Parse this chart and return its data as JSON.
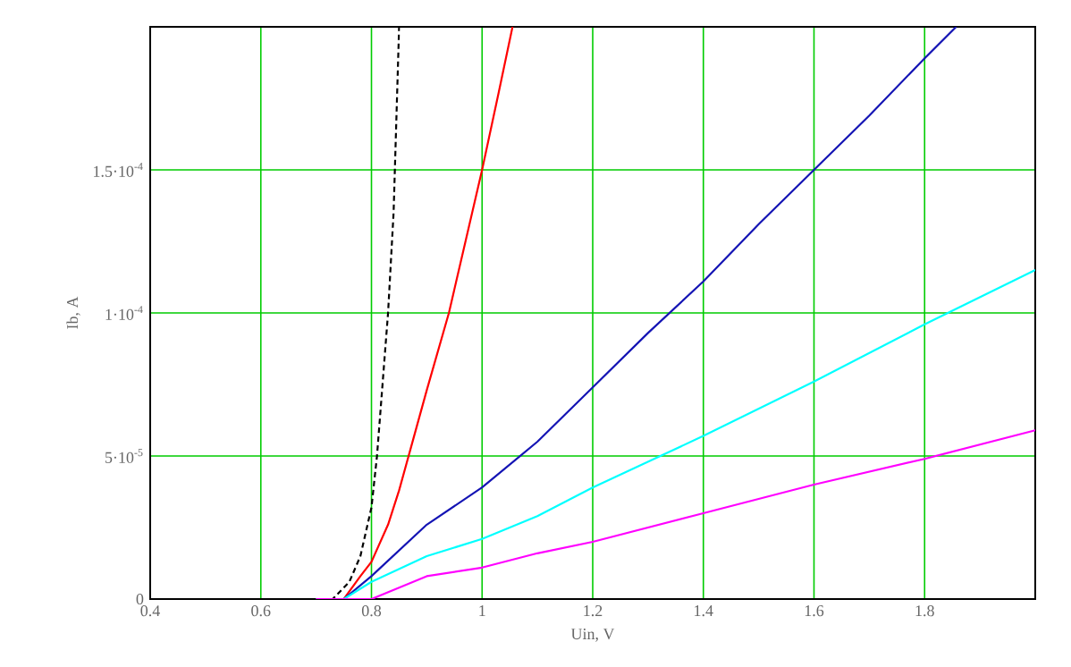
{
  "chart_data": {
    "type": "line",
    "xlabel": "Uin, V",
    "ylabel": "Ib, A",
    "xlim": [
      0.4,
      2.0
    ],
    "ylim": [
      0,
      0.0002
    ],
    "xticks": [
      0.4,
      0.6,
      0.8,
      1,
      1.2,
      1.4,
      1.6,
      1.8
    ],
    "yticks": [
      0,
      {
        "value": 5e-05,
        "label": "5·10$^{-5}$"
      },
      {
        "value": 0.0001,
        "label": "1·10$^{-4}$"
      },
      {
        "value": 0.00015,
        "label": "1.5·10$^{-4}$"
      }
    ],
    "grid": true,
    "series": [
      {
        "color": "#000000",
        "line_style": "dashed",
        "x": [
          0.5,
          0.6,
          0.7,
          0.73,
          0.76,
          0.78,
          0.8,
          0.81,
          0.82,
          0.83,
          0.84,
          0.85
        ],
        "values": [
          0,
          0,
          0,
          0,
          6e-06,
          1.5e-05,
          3.2e-05,
          5e-05,
          7.5e-05,
          0.0001,
          0.000135,
          0.0002
        ]
      },
      {
        "color": "#ff0000",
        "line_style": "solid",
        "x": [
          0.7,
          0.75,
          0.78,
          0.8,
          0.83,
          0.85,
          0.87,
          0.9,
          0.94,
          0.97,
          1.0,
          1.03,
          1.055
        ],
        "values": [
          0,
          0,
          8e-06,
          1.3e-05,
          2.6e-05,
          3.8e-05,
          5.2e-05,
          7.3e-05,
          0.0001,
          0.000125,
          0.00015,
          0.000177,
          0.0002
        ]
      },
      {
        "color": "#1414b4",
        "line_style": "solid",
        "x": [
          0.7,
          0.75,
          0.8,
          0.9,
          1.0,
          1.1,
          1.2,
          1.3,
          1.4,
          1.5,
          1.6,
          1.7,
          1.8,
          1.857
        ],
        "values": [
          0,
          0,
          8e-06,
          2.6e-05,
          3.9e-05,
          5.5e-05,
          7.4e-05,
          9.3e-05,
          0.000111,
          0.000131,
          0.00015,
          0.000169,
          0.000189,
          0.0002
        ]
      },
      {
        "color": "#00ffff",
        "line_style": "solid",
        "x": [
          0.7,
          0.75,
          0.8,
          0.9,
          1.0,
          1.1,
          1.2,
          1.4,
          1.6,
          1.8,
          2.0
        ],
        "values": [
          0,
          0,
          6e-06,
          1.5e-05,
          2.1e-05,
          2.9e-05,
          3.9e-05,
          5.7e-05,
          7.6e-05,
          9.6e-05,
          0.000115
        ]
      },
      {
        "color": "#ff00ff",
        "line_style": "solid",
        "x": [
          0.7,
          0.75,
          0.8,
          0.9,
          1.0,
          1.1,
          1.2,
          1.4,
          1.6,
          1.8,
          2.0
        ],
        "values": [
          0,
          0,
          0,
          8e-06,
          1.1e-05,
          1.6e-05,
          2e-05,
          3e-05,
          4e-05,
          4.9e-05,
          5.9e-05
        ]
      }
    ]
  }
}
